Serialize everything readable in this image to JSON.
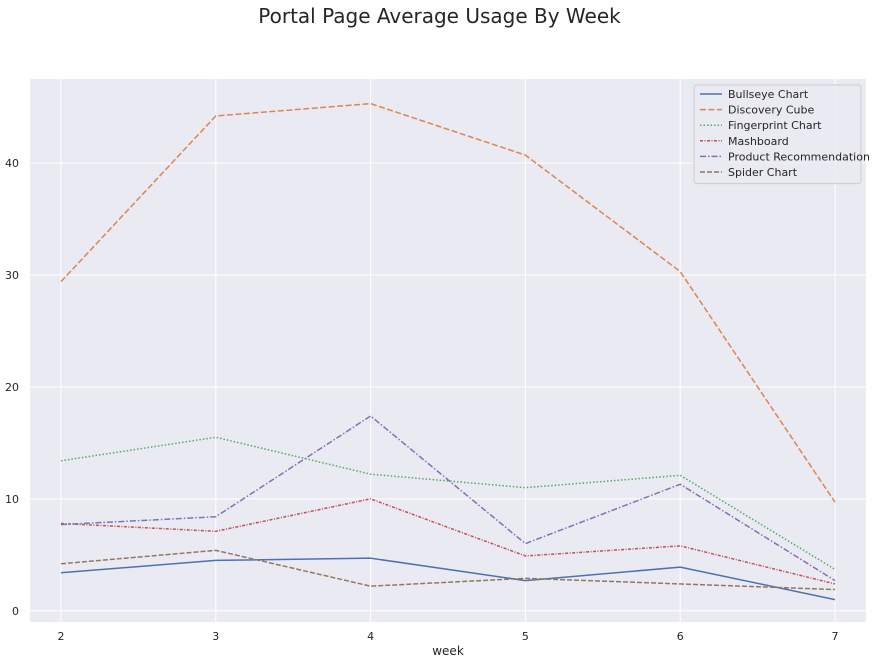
{
  "chart_data": {
    "type": "line",
    "title": "Portal Page Average Usage By Week",
    "xlabel": "week",
    "ylabel": "",
    "x": [
      2,
      3,
      4,
      5,
      6,
      7
    ],
    "xlim": [
      1.8,
      7.2
    ],
    "ylim": [
      -1,
      47.5
    ],
    "yticks": [
      0,
      10,
      20,
      30,
      40
    ],
    "grid": true,
    "legend_position": "top-right",
    "series": [
      {
        "name": "Bullseye Chart",
        "values": [
          3.4,
          4.5,
          4.7,
          2.7,
          3.9,
          1.0
        ],
        "color": "#4c72b0",
        "dash": "solid"
      },
      {
        "name": "Discovery Cube",
        "values": [
          29.4,
          44.2,
          45.3,
          40.7,
          30.3,
          9.7
        ],
        "color": "#dd8452",
        "dash": "dashed"
      },
      {
        "name": "Fingerprint Chart",
        "values": [
          13.4,
          15.5,
          12.2,
          11.0,
          12.1,
          3.7
        ],
        "color": "#55a868",
        "dash": "dotted"
      },
      {
        "name": "Mashboard",
        "values": [
          7.8,
          7.1,
          10.0,
          4.9,
          5.8,
          2.4
        ],
        "color": "#c44e52",
        "dash": "dashdot-short"
      },
      {
        "name": "Product Recommendation",
        "values": [
          7.7,
          8.4,
          17.4,
          6.0,
          11.3,
          2.7
        ],
        "color": "#8172b3",
        "dash": "dashdot"
      },
      {
        "name": "Spider Chart",
        "values": [
          4.2,
          5.4,
          2.2,
          2.9,
          2.4,
          1.9
        ],
        "color": "#937860",
        "dash": "longdash"
      }
    ]
  }
}
